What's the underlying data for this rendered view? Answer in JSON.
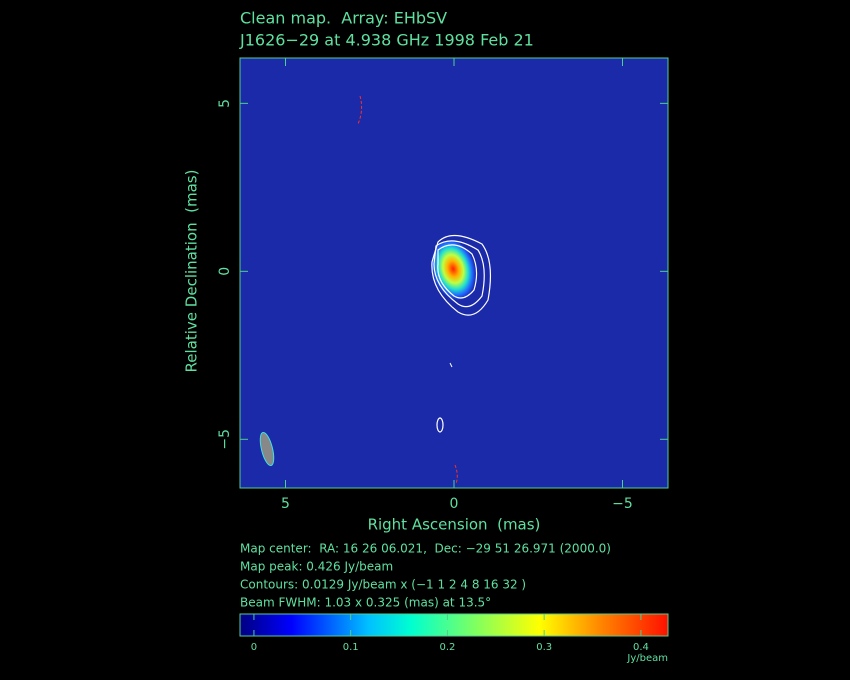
{
  "chart_data": {
    "type": "image",
    "title": "Clean map.  Array: EHbSV",
    "subtitle": "J1626−29 at 4.938 GHz 1998 Feb 21",
    "xlabel": "Right Ascension  (mas)",
    "ylabel": "Relative Declination  (mas)",
    "xlim": [
      6.35,
      -6.35
    ],
    "ylim": [
      -6.45,
      6.35
    ],
    "xticks": [
      5,
      0,
      {
        "value": -5,
        "label": "−5"
      }
    ],
    "yticks": [
      {
        "value": -5,
        "label": "−5"
      },
      0,
      5
    ],
    "notes": [
      "Map center:  RA: 16 26 06.021,  Dec: −29 51 26.971 (2000.0)",
      "Map peak: 0.426 Jy/beam",
      "Contours: 0.0129 Jy/beam x (−1 1 2 4 8 16 32 )",
      "Beam FWHM: 1.03 x 0.325 (mas) at 13.5°"
    ],
    "colorbar": {
      "lim": [
        -0.0144,
        0.428
      ],
      "ticks": [
        0,
        0.1,
        0.2,
        0.3,
        0.4
      ],
      "label": "Jy/beam"
    }
  }
}
